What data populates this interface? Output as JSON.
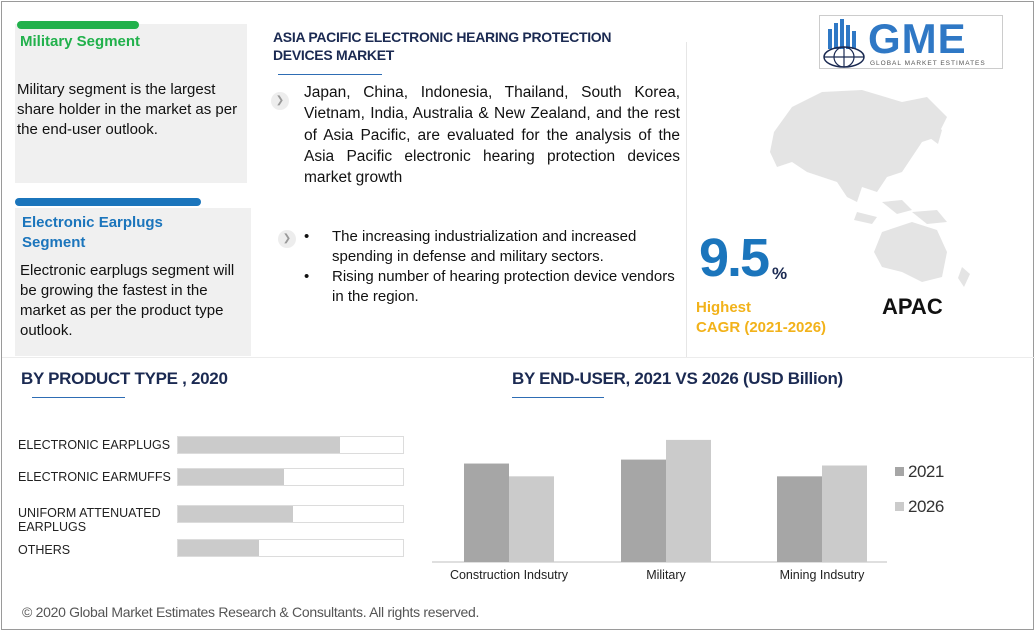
{
  "header": {
    "title": "ASIA PACIFIC ELECTRONIC HEARING PROTECTION DEVICES MARKET",
    "logo_text": "GME",
    "logo_subtitle": "GLOBAL MARKET ESTIMATES"
  },
  "segments": [
    {
      "title": "Military Segment",
      "text": "Military segment is the largest share holder in the market as per the end-user outlook.",
      "color": "#22b14c"
    },
    {
      "title": "Electronic Earplugs Segment",
      "text": "Electronic earplugs segment will be growing the fastest in the market as per the product type outlook.",
      "color": "#1b75bc"
    }
  ],
  "overview": {
    "countries_text": "Japan, China, Indonesia, Thailand, South Korea, Vietnam, India, Australia & New Zealand, and the rest of Asia Pacific, are evaluated for the analysis of the Asia Pacific electronic hearing protection devices market growth",
    "bullets": [
      "The increasing industrialization and increased spending in defense and military sectors.",
      "Rising number of hearing protection device vendors in the region."
    ]
  },
  "cagr": {
    "value": "9.5",
    "unit": "%",
    "label_line1": "Highest",
    "label_line2": "CAGR (2021-2026)",
    "region": "APAC"
  },
  "chart_data": [
    {
      "type": "bar",
      "orientation": "horizontal",
      "title": "BY  PRODUCT TYPE , 2020",
      "categories": [
        "ELECTRONIC EARPLUGS",
        "ELECTRONIC EARMUFFS",
        "UNIFORM ATTENUATED EARPLUGS",
        "OTHERS"
      ],
      "values": [
        0.72,
        0.47,
        0.51,
        0.36
      ],
      "xlim": [
        0,
        1
      ]
    },
    {
      "type": "bar",
      "title": "BY  END-USER,  2021 VS 2026 (USD Billion)",
      "categories": [
        "Construction Indsutry",
        "Military",
        "Mining Indsutry"
      ],
      "series": [
        {
          "name": "2021",
          "values": [
            100,
            104,
            87
          ],
          "color": "#a6a6a6"
        },
        {
          "name": "2026",
          "values": [
            87,
            124,
            98
          ],
          "color": "#cbcbcb"
        }
      ],
      "ylim": [
        0,
        130
      ],
      "legend": "right"
    }
  ],
  "footer": {
    "copyright": "© 2020 Global Market Estimates Research & Consultants. All rights reserved."
  }
}
